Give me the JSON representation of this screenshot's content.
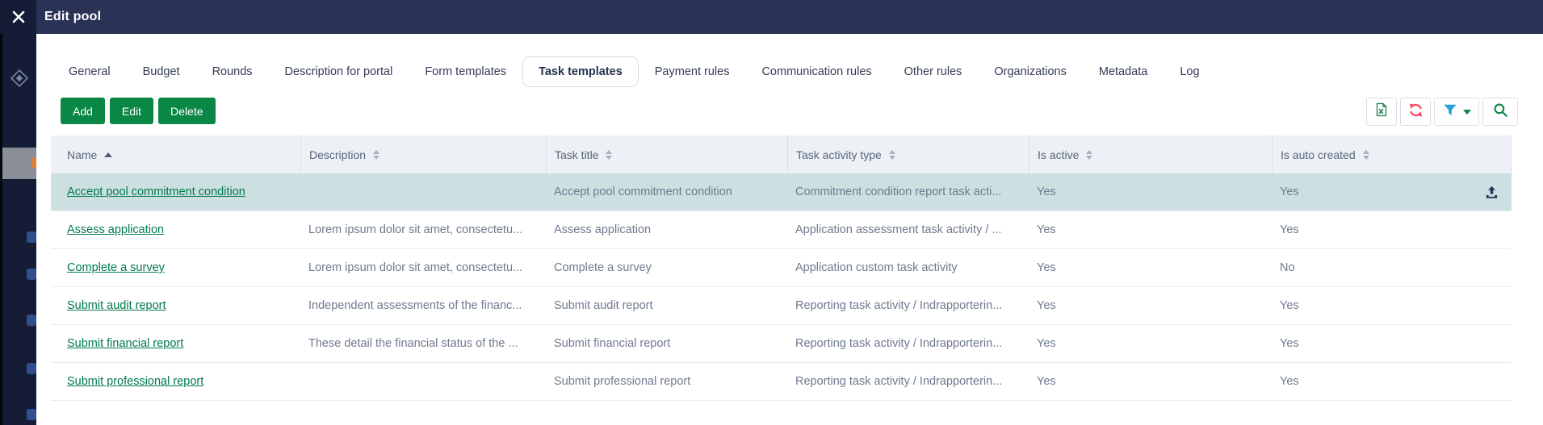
{
  "modal": {
    "title": "Edit pool"
  },
  "tabs": [
    {
      "label": "General",
      "selected": false
    },
    {
      "label": "Budget",
      "selected": false
    },
    {
      "label": "Rounds",
      "selected": false
    },
    {
      "label": "Description for portal",
      "selected": false
    },
    {
      "label": "Form templates",
      "selected": false
    },
    {
      "label": "Task templates",
      "selected": true
    },
    {
      "label": "Payment rules",
      "selected": false
    },
    {
      "label": "Communication rules",
      "selected": false
    },
    {
      "label": "Other rules",
      "selected": false
    },
    {
      "label": "Organizations",
      "selected": false
    },
    {
      "label": "Metadata",
      "selected": false
    },
    {
      "label": "Log",
      "selected": false
    }
  ],
  "toolbar": {
    "buttons": [
      "Add",
      "Edit",
      "Delete"
    ],
    "icons": [
      "excel-export-icon",
      "refresh-icon",
      "filter-icon",
      "filter-dropdown-icon",
      "search-icon"
    ]
  },
  "table": {
    "columns": [
      {
        "label": "Name",
        "sort": "asc"
      },
      {
        "label": "Description",
        "sort": "both"
      },
      {
        "label": "Task title",
        "sort": "both"
      },
      {
        "label": "Task activity type",
        "sort": "both"
      },
      {
        "label": "Is active",
        "sort": "both"
      },
      {
        "label": "Is auto created",
        "sort": "both"
      }
    ],
    "rows": [
      {
        "name": "Accept pool commitment condition",
        "description": "",
        "task_title": "Accept pool commitment condition",
        "task_activity_type": "Commitment condition report task acti...",
        "is_active": "Yes",
        "is_auto_created": "Yes",
        "selected": true,
        "upload_icon": true
      },
      {
        "name": "Assess application",
        "description": "Lorem ipsum dolor sit amet, consectetu...",
        "task_title": "Assess application",
        "task_activity_type": "Application assessment task activity / ...",
        "is_active": "Yes",
        "is_auto_created": "Yes",
        "selected": false,
        "upload_icon": false
      },
      {
        "name": "Complete a survey",
        "description": "Lorem ipsum dolor sit amet, consectetu...",
        "task_title": "Complete a survey",
        "task_activity_type": "Application custom task activity",
        "is_active": "Yes",
        "is_auto_created": "No",
        "selected": false,
        "upload_icon": false
      },
      {
        "name": "Submit audit report",
        "description": "Independent assessments of the financ...",
        "task_title": "Submit audit report",
        "task_activity_type": "Reporting task activity / Indrapporterin...",
        "is_active": "Yes",
        "is_auto_created": "Yes",
        "selected": false,
        "upload_icon": false
      },
      {
        "name": "Submit financial report",
        "description": "These detail the financial status of the ...",
        "task_title": "Submit financial report",
        "task_activity_type": "Reporting task activity / Indrapporterin...",
        "is_active": "Yes",
        "is_auto_created": "Yes",
        "selected": false,
        "upload_icon": false
      },
      {
        "name": "Submit professional report",
        "description": "",
        "task_title": "Submit professional report",
        "task_activity_type": "Reporting task activity / Indrapporterin...",
        "is_active": "Yes",
        "is_auto_created": "Yes",
        "selected": false,
        "upload_icon": false
      }
    ]
  },
  "colors": {
    "header_navy": "#2a3356",
    "sidebar_navy": "#141c36",
    "accent_green": "#0a8745",
    "link_green": "#00794a",
    "selected_row_teal": "#cde0e1",
    "refresh_red": "#f4455c",
    "filter_blue": "#2aa0d8",
    "table_header_bg": "#edf1f6"
  }
}
